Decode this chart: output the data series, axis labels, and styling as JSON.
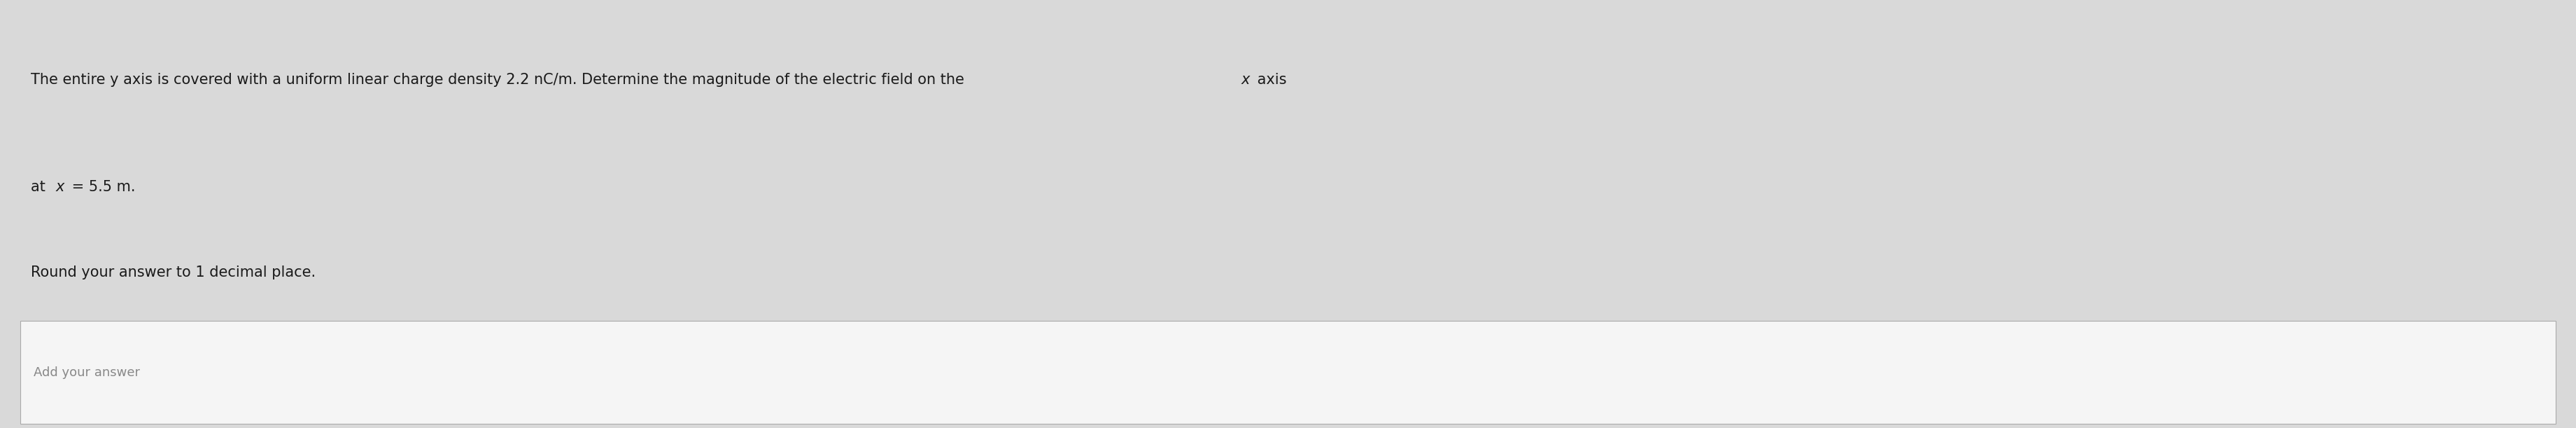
{
  "line1": "The entire y axis is covered with a uniform linear charge density 2.2 nC/m. Determine the magnitude of the electric field on the  x  axis",
  "line1_normal": "The entire y axis is covered with a uniform linear charge density 2.2 nC/m. Determine the magnitude of the electric field on the ",
  "line1_italic": "x axis",
  "line2": "at x = 5.5 m.",
  "line3": "Round your answer to 1 decimal place.",
  "placeholder": "Add your answer",
  "bg_color": "#d9d9d9",
  "box_bg": "#f0f0f0",
  "text_color": "#1a1a1a",
  "placeholder_color": "#888888",
  "font_size_main": 15,
  "font_size_round": 15,
  "font_size_placeholder": 13
}
